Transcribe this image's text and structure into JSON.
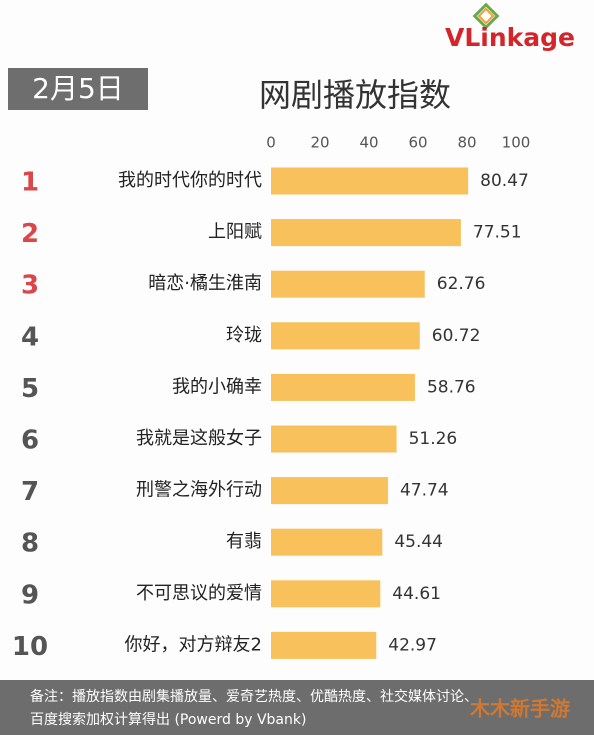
{
  "chart_data": {
    "type": "bar",
    "orientation": "horizontal",
    "brand": "VLinkage",
    "date": "2月5日",
    "title": "网剧播放指数",
    "ranks": [
      "1",
      "2",
      "3",
      "4",
      "5",
      "6",
      "7",
      "8",
      "9",
      "10"
    ],
    "rank_colors": [
      "#d9474a",
      "#d9474a",
      "#d9474a",
      "#555555",
      "#555555",
      "#555555",
      "#555555",
      "#555555",
      "#555555",
      "#555555"
    ],
    "categories": [
      "我的时代你的时代",
      "上阳赋",
      "暗恋·橘生淮南",
      "玲珑",
      "我的小确幸",
      "我就是这般女子",
      "刑警之海外行动",
      "有翡",
      "不可思议的爱情",
      "你好，对方辩友2"
    ],
    "values": [
      80.47,
      77.51,
      62.76,
      60.72,
      58.76,
      51.26,
      47.74,
      45.44,
      44.61,
      42.97
    ],
    "color": "#f8c15c",
    "xlim": [
      0,
      100
    ],
    "xticks": [
      0,
      20,
      40,
      60,
      80,
      100
    ],
    "note": [
      "备注：播放指数由剧集播放量、爱奇艺热度、优酷热度、社交媒体讨论、",
      "百度搜索加权计算得出 (Powerd by Vbank)"
    ],
    "watermark": "木木新手游"
  }
}
